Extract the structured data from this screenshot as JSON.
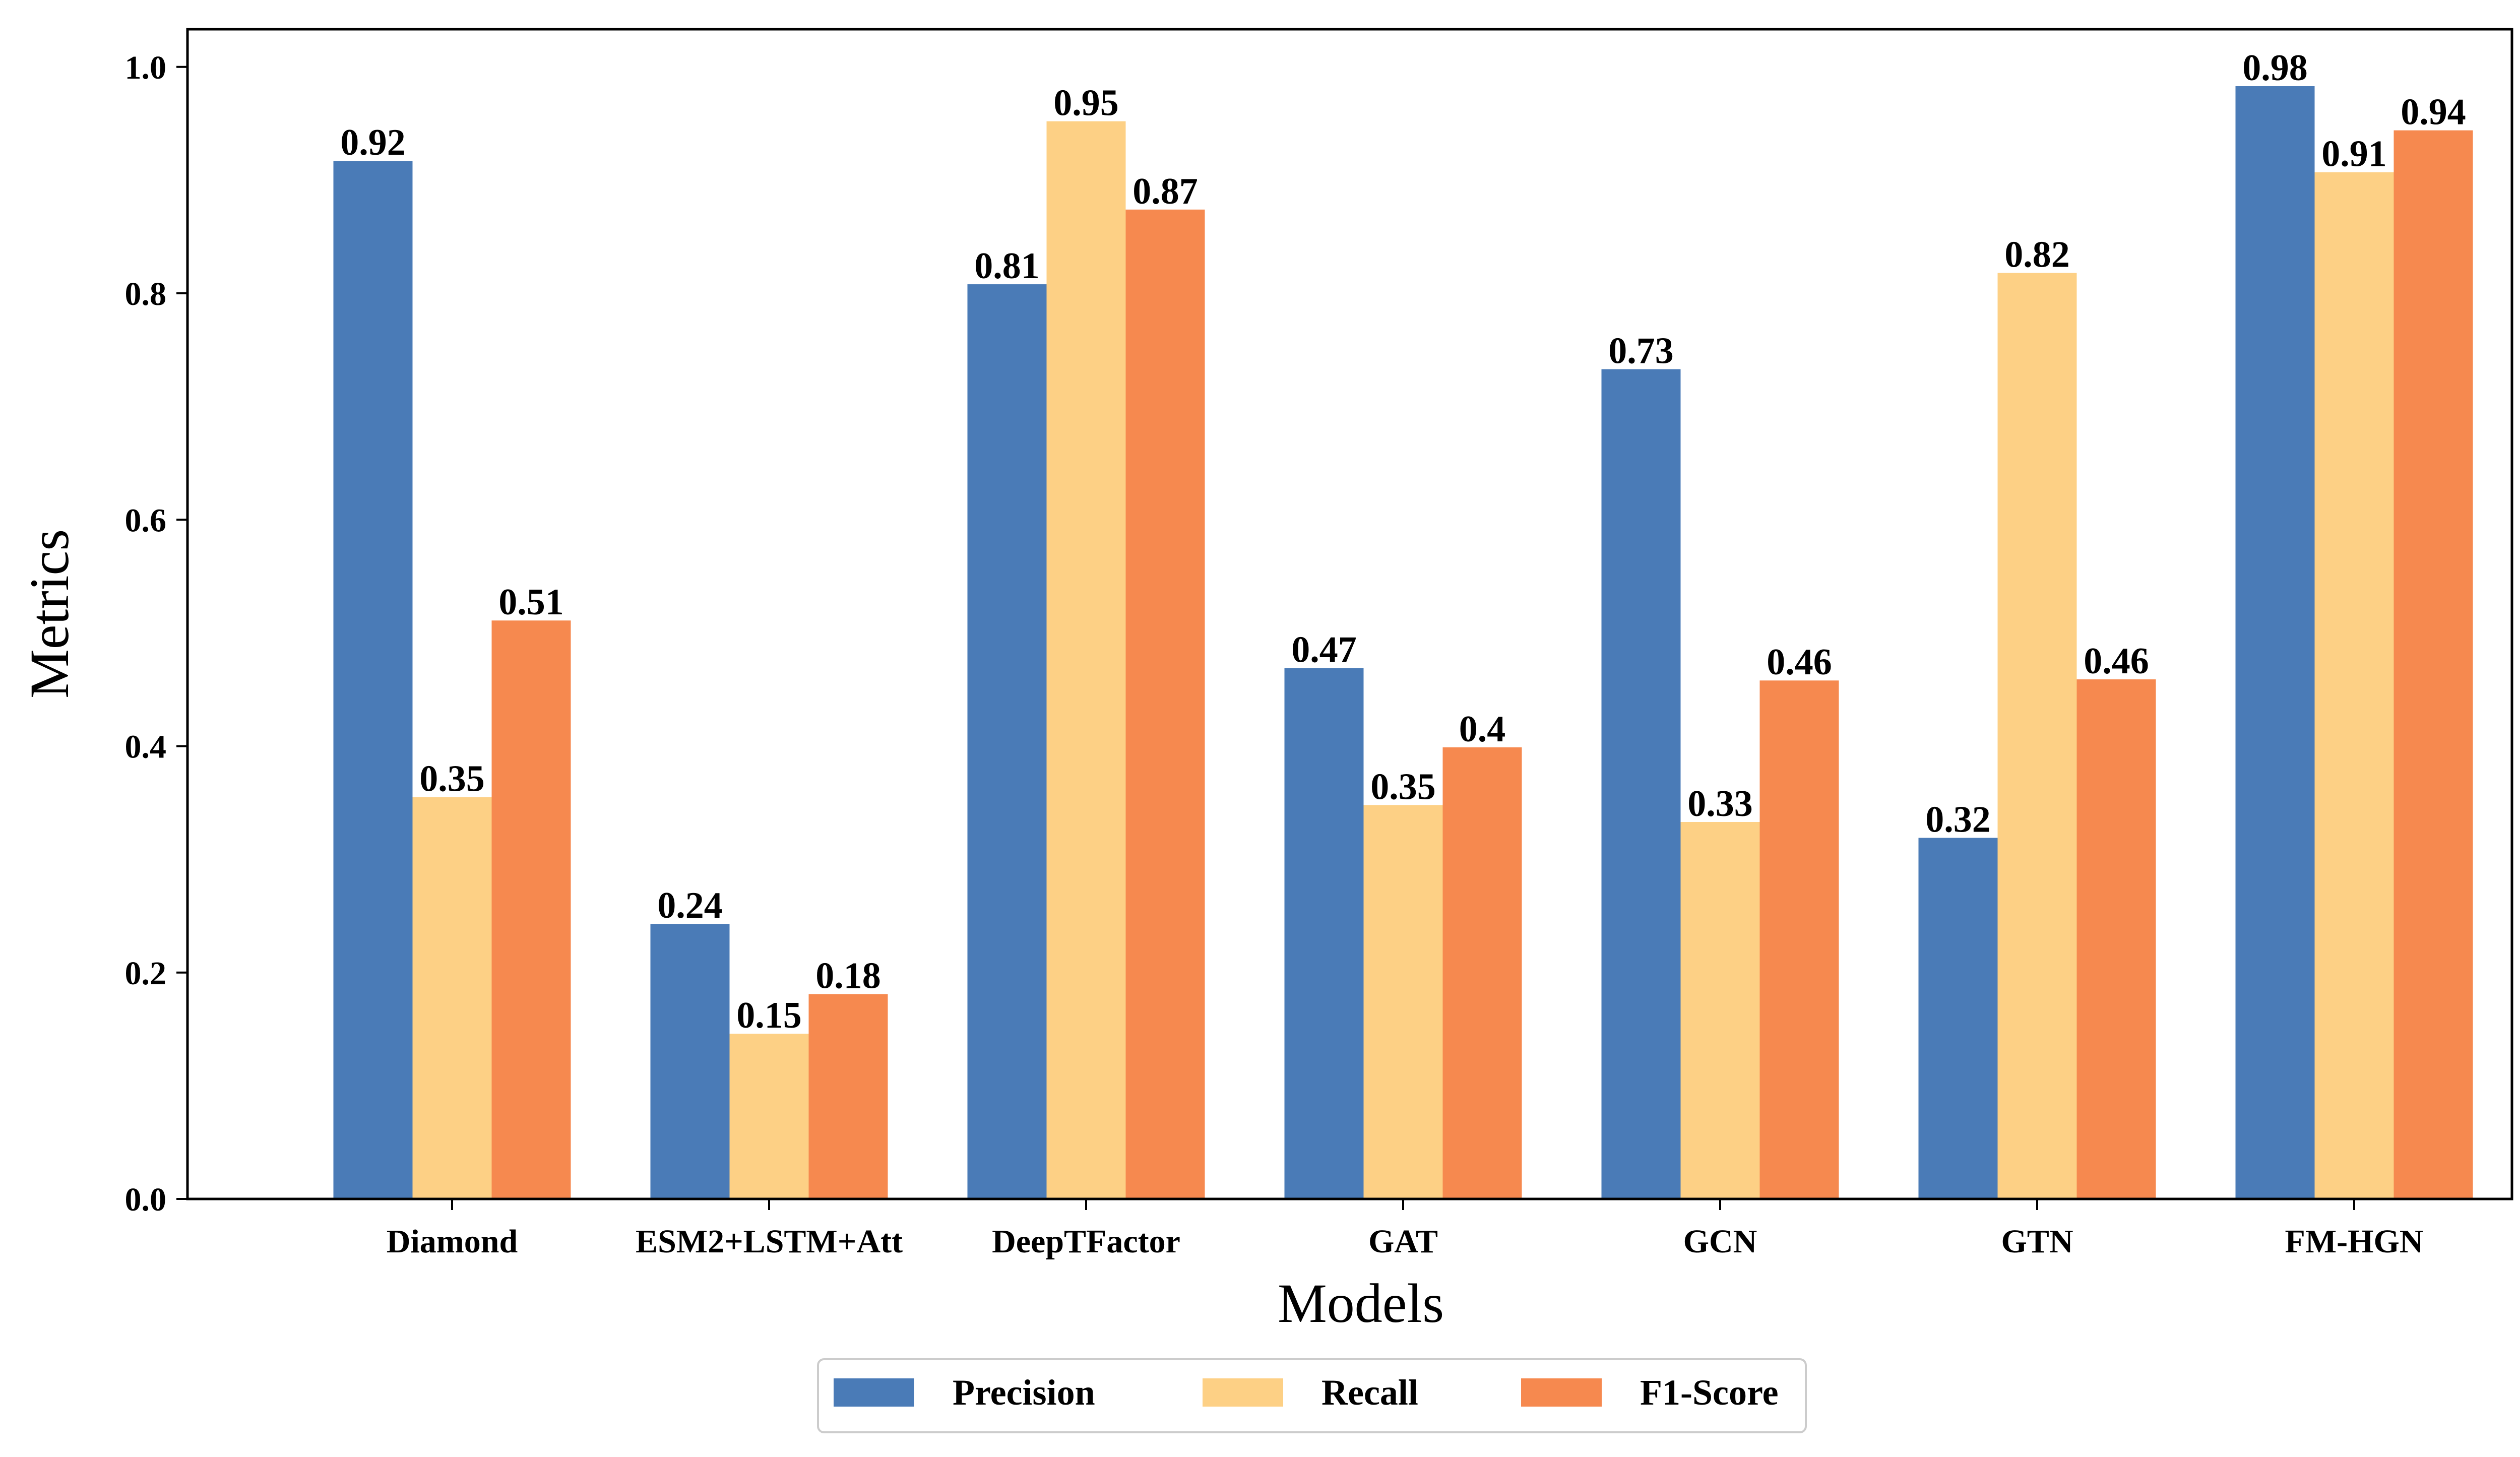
{
  "chart_data": {
    "type": "bar",
    "xlabel": "Models",
    "ylabel": "Metrics",
    "categories": [
      "Diamond",
      "ESM2+LSTM+Att",
      "DeepTFactor",
      "GAT",
      "GCN",
      "GTN",
      "FM-HGN"
    ],
    "series": [
      {
        "name": "Precision",
        "color": "#4a7bb7",
        "values": [
          0.917,
          0.243,
          0.808,
          0.469,
          0.733,
          0.319,
          0.983
        ],
        "labels": [
          "0.92",
          "0.24",
          "0.81",
          "0.47",
          "0.73",
          "0.32",
          "0.98"
        ]
      },
      {
        "name": "Recall",
        "color": "#fdd085",
        "values": [
          0.355,
          0.146,
          0.952,
          0.348,
          0.333,
          0.818,
          0.907
        ],
        "labels": [
          "0.35",
          "0.15",
          "0.95",
          "0.35",
          "0.33",
          "0.82",
          "0.91"
        ]
      },
      {
        "name": "F1-Score",
        "color": "#f6894f",
        "values": [
          0.511,
          0.181,
          0.874,
          0.399,
          0.458,
          0.459,
          0.944
        ],
        "labels": [
          "0.51",
          "0.18",
          "0.87",
          "0.4",
          "0.46",
          "0.46",
          "0.94"
        ]
      }
    ],
    "ylim": [
      0,
      1.0333
    ],
    "yticks": [
      "0.0",
      "0.2",
      "0.4",
      "0.6",
      "0.8",
      "1.0"
    ],
    "ytick_values": [
      0,
      0.2,
      0.4,
      0.6,
      0.8,
      1.0
    ],
    "grid": false,
    "legend_position": "bottom-center"
  }
}
